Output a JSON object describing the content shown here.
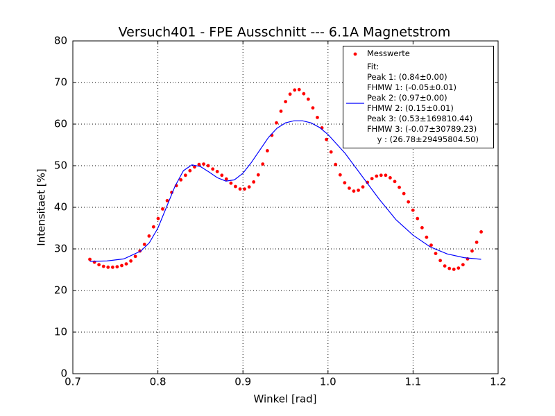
{
  "chart_data": {
    "type": "scatter",
    "title": "Versuch401 - FPE Ausschnitt --- 6.1A Magnetstrom",
    "x_label": "Winkel [rad]",
    "y_label": "Intensitaet [%]",
    "xlim": [
      0.7,
      1.2
    ],
    "ylim": [
      0,
      80
    ],
    "xticks": [
      0.7,
      0.8,
      0.9,
      {
        "value": 1,
        "label": "1.0"
      },
      1.1,
      1.2
    ],
    "yticks": [
      0,
      10,
      20,
      30,
      40,
      50,
      60,
      70,
      80
    ],
    "grid": true,
    "legend": "upper right",
    "series": [
      {
        "name": "Messwerte",
        "style": "markers",
        "color": "#ff0000",
        "x": [
          0.72,
          0.7254,
          0.7307,
          0.7361,
          0.7414,
          0.7468,
          0.7521,
          0.7575,
          0.7628,
          0.7682,
          0.7735,
          0.7789,
          0.7842,
          0.7896,
          0.7949,
          0.8003,
          0.8056,
          0.811,
          0.8163,
          0.8217,
          0.827,
          0.8324,
          0.8377,
          0.8431,
          0.8484,
          0.8538,
          0.8591,
          0.8645,
          0.8698,
          0.8752,
          0.8805,
          0.8859,
          0.8912,
          0.8966,
          0.9019,
          0.9073,
          0.9126,
          0.918,
          0.9233,
          0.9287,
          0.934,
          0.9394,
          0.9447,
          0.9501,
          0.9554,
          0.9608,
          0.9661,
          0.9715,
          0.9768,
          0.9822,
          0.9875,
          0.9929,
          0.9982,
          1.0036,
          1.0089,
          1.0143,
          1.0196,
          1.025,
          1.0303,
          1.0357,
          1.041,
          1.0464,
          1.0517,
          1.0571,
          1.0624,
          1.0678,
          1.0731,
          1.0785,
          1.0838,
          1.0892,
          1.0945,
          1.0999,
          1.1052,
          1.1106,
          1.1159,
          1.1213,
          1.1266,
          1.132,
          1.1373,
          1.1427,
          1.148,
          1.1534,
          1.1587,
          1.1641,
          1.1694,
          1.1748,
          1.1801
        ],
        "values": [
          27.5,
          26.8,
          26.2,
          25.8,
          25.6,
          25.6,
          25.7,
          26.0,
          26.4,
          27.1,
          28.2,
          29.5,
          31.1,
          33.1,
          35.3,
          37.3,
          39.6,
          41.6,
          43.6,
          45.2,
          46.6,
          47.7,
          48.8,
          49.7,
          50.3,
          50.4,
          50.0,
          49.2,
          48.6,
          47.7,
          46.8,
          45.8,
          45.0,
          44.4,
          44.4,
          44.9,
          46.1,
          47.8,
          50.4,
          53.6,
          57.3,
          60.3,
          63.1,
          65.4,
          67.2,
          68.2,
          68.3,
          67.3,
          66.0,
          63.9,
          61.6,
          59.1,
          56.3,
          53.3,
          50.3,
          47.8,
          45.9,
          44.6,
          43.9,
          44.1,
          44.9,
          46.0,
          46.9,
          47.5,
          47.7,
          47.7,
          47.1,
          46.2,
          44.8,
          43.3,
          41.3,
          39.3,
          37.3,
          35.1,
          32.8,
          30.9,
          28.9,
          27.2,
          25.9,
          25.3,
          25.1,
          25.4,
          26.2,
          27.6,
          29.5,
          31.6,
          34.1
        ]
      },
      {
        "name": "Fit:\nPeak 1: (0.84±0.00)\nFHMW 1: (-0.05±0.01)\nPeak 2: (0.97±0.00)\nFHMW 2: (0.15±0.01)\nPeak 3: (0.53±169810.44)\nFHMW 3: (-0.07±30789.23)\n    y : (26.78±29495804.50)",
        "style": "line",
        "color": "#0000ff",
        "x": [
          0.72,
          0.74,
          0.76,
          0.78,
          0.79,
          0.8,
          0.81,
          0.82,
          0.83,
          0.84,
          0.85,
          0.86,
          0.87,
          0.88,
          0.89,
          0.9,
          0.91,
          0.92,
          0.93,
          0.94,
          0.95,
          0.96,
          0.97,
          0.98,
          0.99,
          1.0,
          1.02,
          1.04,
          1.06,
          1.08,
          1.1,
          1.12,
          1.14,
          1.16,
          1.18
        ],
        "values": [
          27,
          27.1,
          27.6,
          29.5,
          31.5,
          35,
          40,
          45,
          48.8,
          50.2,
          49.8,
          48.5,
          47.1,
          46.3,
          46.6,
          48.2,
          50.8,
          53.8,
          56.8,
          59.0,
          60.3,
          60.8,
          60.8,
          60.3,
          59.2,
          57.5,
          53,
          47.5,
          42,
          37,
          33.3,
          30.5,
          28.8,
          27.9,
          27.5
        ]
      }
    ]
  }
}
